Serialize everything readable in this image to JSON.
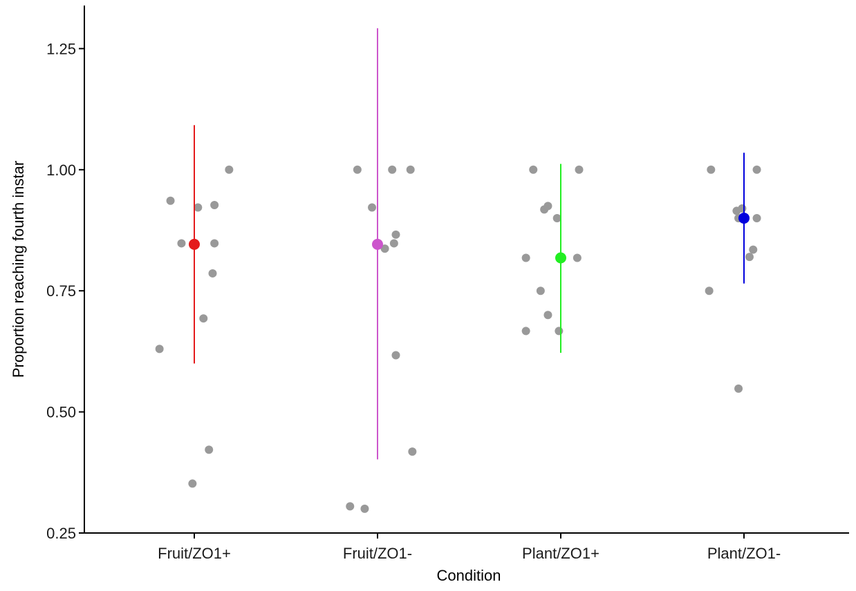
{
  "chart_data": {
    "type": "scatter",
    "title": "",
    "xlabel": "Condition",
    "ylabel": "Proportion reaching fourth instar",
    "ylim": [
      0.25,
      1.35
    ],
    "yticks": [
      0.25,
      0.5,
      0.75,
      1.0
    ],
    "ytick_labels": [
      "0.25",
      "0.50",
      "0.75",
      "1.00",
      "1.25"
    ],
    "yticks_full": [
      0.25,
      0.5,
      0.75,
      1.0,
      1.25
    ],
    "categories": [
      "Fruit/ZO1+",
      "Fruit/ZO1-",
      "Plant/ZO1+",
      "Plant/ZO1-"
    ],
    "grid": false,
    "legend": "none",
    "point_color": "#999999",
    "groups": [
      {
        "category": "Fruit/ZO1+",
        "color": "#e41a1c",
        "mean": 0.846,
        "ci": [
          0.6,
          1.092
        ],
        "points": [
          {
            "jitter": -0.19,
            "y": 0.63
          },
          {
            "jitter": -0.13,
            "y": 0.936
          },
          {
            "jitter": -0.07,
            "y": 0.848
          },
          {
            "jitter": -0.01,
            "y": 0.352
          },
          {
            "jitter": 0.02,
            "y": 0.922
          },
          {
            "jitter": 0.05,
            "y": 0.693
          },
          {
            "jitter": 0.08,
            "y": 0.422
          },
          {
            "jitter": 0.1,
            "y": 0.786
          },
          {
            "jitter": 0.11,
            "y": 0.848
          },
          {
            "jitter": 0.11,
            "y": 0.927
          },
          {
            "jitter": 0.19,
            "y": 1.0
          }
        ]
      },
      {
        "category": "Fruit/ZO1-",
        "color": "#cc55cc",
        "mean": 0.846,
        "ci": [
          0.402,
          1.292
        ],
        "points": [
          {
            "jitter": -0.15,
            "y": 0.305
          },
          {
            "jitter": -0.11,
            "y": 1.0
          },
          {
            "jitter": -0.07,
            "y": 0.3
          },
          {
            "jitter": -0.03,
            "y": 0.922
          },
          {
            "jitter": 0.04,
            "y": 0.837
          },
          {
            "jitter": 0.08,
            "y": 1.0
          },
          {
            "jitter": 0.09,
            "y": 0.848
          },
          {
            "jitter": 0.1,
            "y": 0.866
          },
          {
            "jitter": 0.1,
            "y": 0.617
          },
          {
            "jitter": 0.18,
            "y": 1.0
          },
          {
            "jitter": 0.19,
            "y": 0.418
          }
        ]
      },
      {
        "category": "Plant/ZO1+",
        "color": "#22ee22",
        "mean": 0.818,
        "ci": [
          0.622,
          1.012
        ],
        "points": [
          {
            "jitter": -0.19,
            "y": 0.667
          },
          {
            "jitter": -0.19,
            "y": 0.818
          },
          {
            "jitter": -0.15,
            "y": 1.0
          },
          {
            "jitter": -0.11,
            "y": 0.75
          },
          {
            "jitter": -0.09,
            "y": 0.918
          },
          {
            "jitter": -0.07,
            "y": 0.925
          },
          {
            "jitter": -0.07,
            "y": 0.7
          },
          {
            "jitter": -0.02,
            "y": 0.9
          },
          {
            "jitter": -0.01,
            "y": 0.667
          },
          {
            "jitter": 0.09,
            "y": 0.818
          },
          {
            "jitter": 0.1,
            "y": 1.0
          }
        ]
      },
      {
        "category": "Plant/ZO1-",
        "color": "#0000dd",
        "mean": 0.9,
        "ci": [
          0.765,
          1.035
        ],
        "points": [
          {
            "jitter": -0.19,
            "y": 0.75
          },
          {
            "jitter": -0.18,
            "y": 1.0
          },
          {
            "jitter": -0.04,
            "y": 0.915
          },
          {
            "jitter": -0.03,
            "y": 0.9
          },
          {
            "jitter": -0.03,
            "y": 0.548
          },
          {
            "jitter": -0.01,
            "y": 0.92
          },
          {
            "jitter": 0.03,
            "y": 0.82
          },
          {
            "jitter": 0.05,
            "y": 0.835
          },
          {
            "jitter": 0.07,
            "y": 0.9
          },
          {
            "jitter": 0.07,
            "y": 1.0
          }
        ]
      }
    ]
  }
}
